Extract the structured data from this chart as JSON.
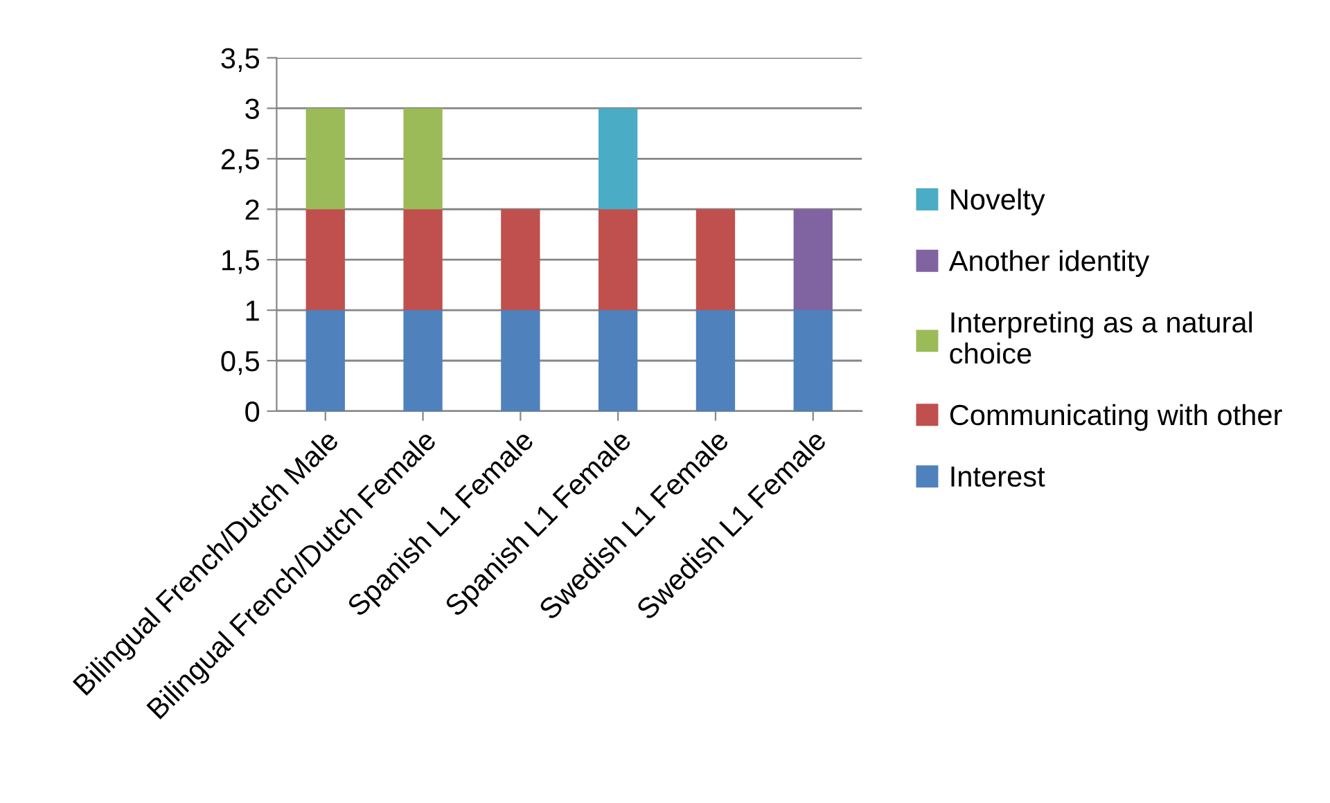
{
  "chart_data": {
    "type": "bar",
    "stacked": true,
    "categories": [
      "Bilingual French/Dutch Male",
      "Bilingual French/Dutch Female",
      "Spanish L1 Female",
      "Spanish L1 Female",
      "Swedish L1 Female",
      "Swedish L1 Female"
    ],
    "series": [
      {
        "name": "Interest",
        "color": "#4f81bd",
        "values": [
          1,
          1,
          1,
          1,
          1,
          1
        ]
      },
      {
        "name": "Communicating with other",
        "color": "#c0504d",
        "values": [
          1,
          1,
          1,
          1,
          1,
          0
        ]
      },
      {
        "name": "Interpreting as a natural choice",
        "color": "#9bbb59",
        "values": [
          1,
          1,
          0,
          0,
          0,
          0
        ]
      },
      {
        "name": "Another identity",
        "color": "#8064a2",
        "values": [
          0,
          0,
          0,
          0,
          0,
          1
        ]
      },
      {
        "name": "Novelty",
        "color": "#4bacc6",
        "values": [
          0,
          0,
          0,
          1,
          0,
          0
        ]
      }
    ],
    "ylim": [
      0,
      3.5
    ],
    "yticks": [
      0,
      {
        "value": 0.5,
        "label": "0,5"
      },
      1,
      {
        "value": 1.5,
        "label": "1,5"
      },
      2,
      {
        "value": 2.5,
        "label": "2,5"
      },
      3,
      {
        "value": 3.5,
        "label": "3,5"
      }
    ],
    "grid": "y",
    "legend": "right"
  }
}
